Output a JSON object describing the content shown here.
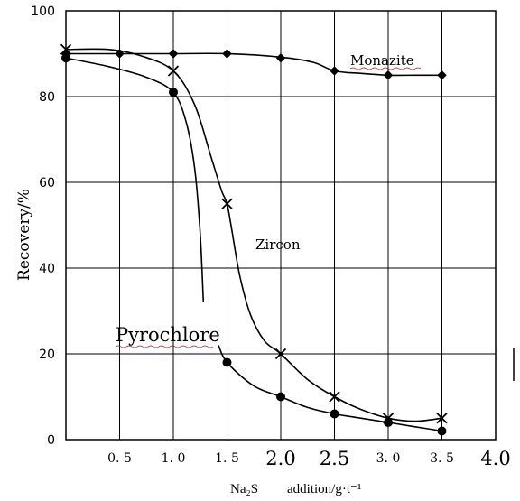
{
  "chart_data": {
    "type": "line",
    "xlabel_parts": [
      "Na₂S",
      "addition/g·t⁻¹"
    ],
    "ylabel": "Recovery/%",
    "xlim": [
      0,
      4.0
    ],
    "ylim": [
      0,
      100
    ],
    "grid": true,
    "yticks": [
      {
        "value": 0,
        "label": "0"
      },
      {
        "value": 20,
        "label": "20"
      },
      {
        "value": 40,
        "label": "40"
      },
      {
        "value": 60,
        "label": "60"
      },
      {
        "value": 80,
        "label": "80"
      },
      {
        "value": 100,
        "label": "100"
      }
    ],
    "xticks": [
      {
        "value": 0.5,
        "label": "0. 5",
        "style": "small"
      },
      {
        "value": 1.0,
        "label": "1. 0",
        "style": "small"
      },
      {
        "value": 1.5,
        "label": "1. 5",
        "style": "small"
      },
      {
        "value": 2.0,
        "label": "2.0",
        "style": "big"
      },
      {
        "value": 2.5,
        "label": "2.5",
        "style": "big"
      },
      {
        "value": 3.0,
        "label": "3. 0",
        "style": "small"
      },
      {
        "value": 3.5,
        "label": "3. 5",
        "style": "small"
      },
      {
        "value": 4.0,
        "label": "4.0",
        "style": "big"
      }
    ],
    "series": [
      {
        "name": "Monazite",
        "marker": "diamond",
        "x": [
          0,
          0.5,
          1.0,
          1.5,
          2.0,
          2.5,
          3.0,
          3.5
        ],
        "values": [
          90,
          90,
          90,
          90,
          89,
          86,
          85,
          85
        ],
        "curve": [
          [
            0,
            90
          ],
          [
            0.5,
            90
          ],
          [
            1.0,
            90
          ],
          [
            1.5,
            90
          ],
          [
            2.0,
            89.2
          ],
          [
            2.3,
            88
          ],
          [
            2.5,
            86
          ],
          [
            2.75,
            85.4
          ],
          [
            3.0,
            85
          ],
          [
            3.25,
            85
          ],
          [
            3.5,
            85
          ]
        ]
      },
      {
        "name": "Zircon",
        "marker": "x",
        "x": [
          0,
          1.0,
          1.5,
          2.0,
          2.5,
          3.0,
          3.5
        ],
        "values": [
          91,
          86,
          55,
          20,
          10,
          5,
          5
        ],
        "curve": [
          [
            0,
            91
          ],
          [
            0.4,
            91
          ],
          [
            0.7,
            89.5
          ],
          [
            1.0,
            86
          ],
          [
            1.2,
            78
          ],
          [
            1.35,
            66
          ],
          [
            1.45,
            58
          ],
          [
            1.5,
            55
          ],
          [
            1.55,
            48
          ],
          [
            1.62,
            38
          ],
          [
            1.72,
            29
          ],
          [
            1.85,
            23
          ],
          [
            2.0,
            20
          ],
          [
            2.25,
            14
          ],
          [
            2.5,
            10
          ],
          [
            2.75,
            7
          ],
          [
            3.0,
            5
          ],
          [
            3.25,
            4.3
          ],
          [
            3.5,
            5
          ]
        ]
      },
      {
        "name": "Pyrochlore",
        "marker": "circle",
        "x": [
          0,
          1.0,
          1.5,
          2.0,
          2.5,
          3.0,
          3.5
        ],
        "values": [
          89,
          81,
          18,
          10,
          6,
          4,
          2
        ],
        "curve": [
          [
            0,
            89
          ],
          [
            0.4,
            87
          ],
          [
            0.75,
            84.5
          ],
          [
            1.0,
            81
          ],
          [
            1.12,
            74
          ],
          [
            1.2,
            63
          ],
          [
            1.25,
            48
          ],
          [
            1.28,
            32
          ]
        ],
        "curve2": [
          [
            1.42,
            22
          ],
          [
            1.5,
            18
          ],
          [
            1.75,
            12.5
          ],
          [
            2.0,
            10
          ],
          [
            2.25,
            7.5
          ],
          [
            2.5,
            6
          ],
          [
            2.75,
            5
          ],
          [
            3.0,
            4
          ],
          [
            3.25,
            3
          ],
          [
            3.5,
            2
          ]
        ]
      }
    ]
  }
}
